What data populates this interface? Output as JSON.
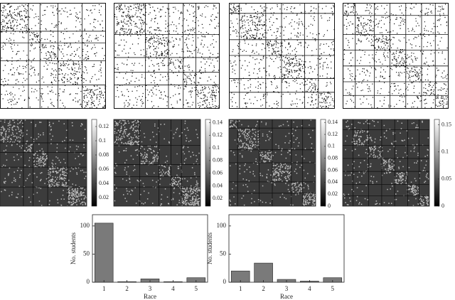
{
  "chart_data": [
    {
      "type": "heatmap",
      "clim": [
        0.008,
        0.13
      ],
      "cticks": [
        0.02,
        0.04,
        0.06,
        0.08,
        0.1,
        0.12
      ]
    },
    {
      "type": "heatmap",
      "clim": [
        0.008,
        0.145
      ],
      "cticks": [
        0.02,
        0.04,
        0.06,
        0.08,
        0.1,
        0.12,
        0.14
      ]
    },
    {
      "type": "heatmap",
      "clim": [
        0,
        0.145
      ],
      "cticks": [
        0,
        0.02,
        0.04,
        0.06,
        0.08,
        0.1,
        0.12,
        0.14
      ]
    },
    {
      "type": "heatmap",
      "clim": [
        0,
        0.16
      ],
      "cticks": [
        0,
        0.05,
        0.1,
        0.15
      ]
    },
    {
      "type": "bar",
      "categories": [
        "1",
        "2",
        "3",
        "4",
        "5"
      ],
      "values": [
        105,
        1,
        6,
        1,
        8
      ],
      "color": "#7a7a7a",
      "xlabel": "Race",
      "ylabel": "No. students",
      "ylim": [
        0,
        120
      ],
      "yticks": [
        0,
        50,
        100
      ]
    },
    {
      "type": "bar",
      "categories": [
        "1",
        "2",
        "3",
        "4",
        "5"
      ],
      "values": [
        20,
        34,
        5,
        2,
        8
      ],
      "color": "#7a7a7a",
      "xlabel": "Race",
      "ylabel": "No. students",
      "ylim": [
        0,
        120
      ],
      "yticks": [
        0,
        50,
        100
      ]
    }
  ]
}
